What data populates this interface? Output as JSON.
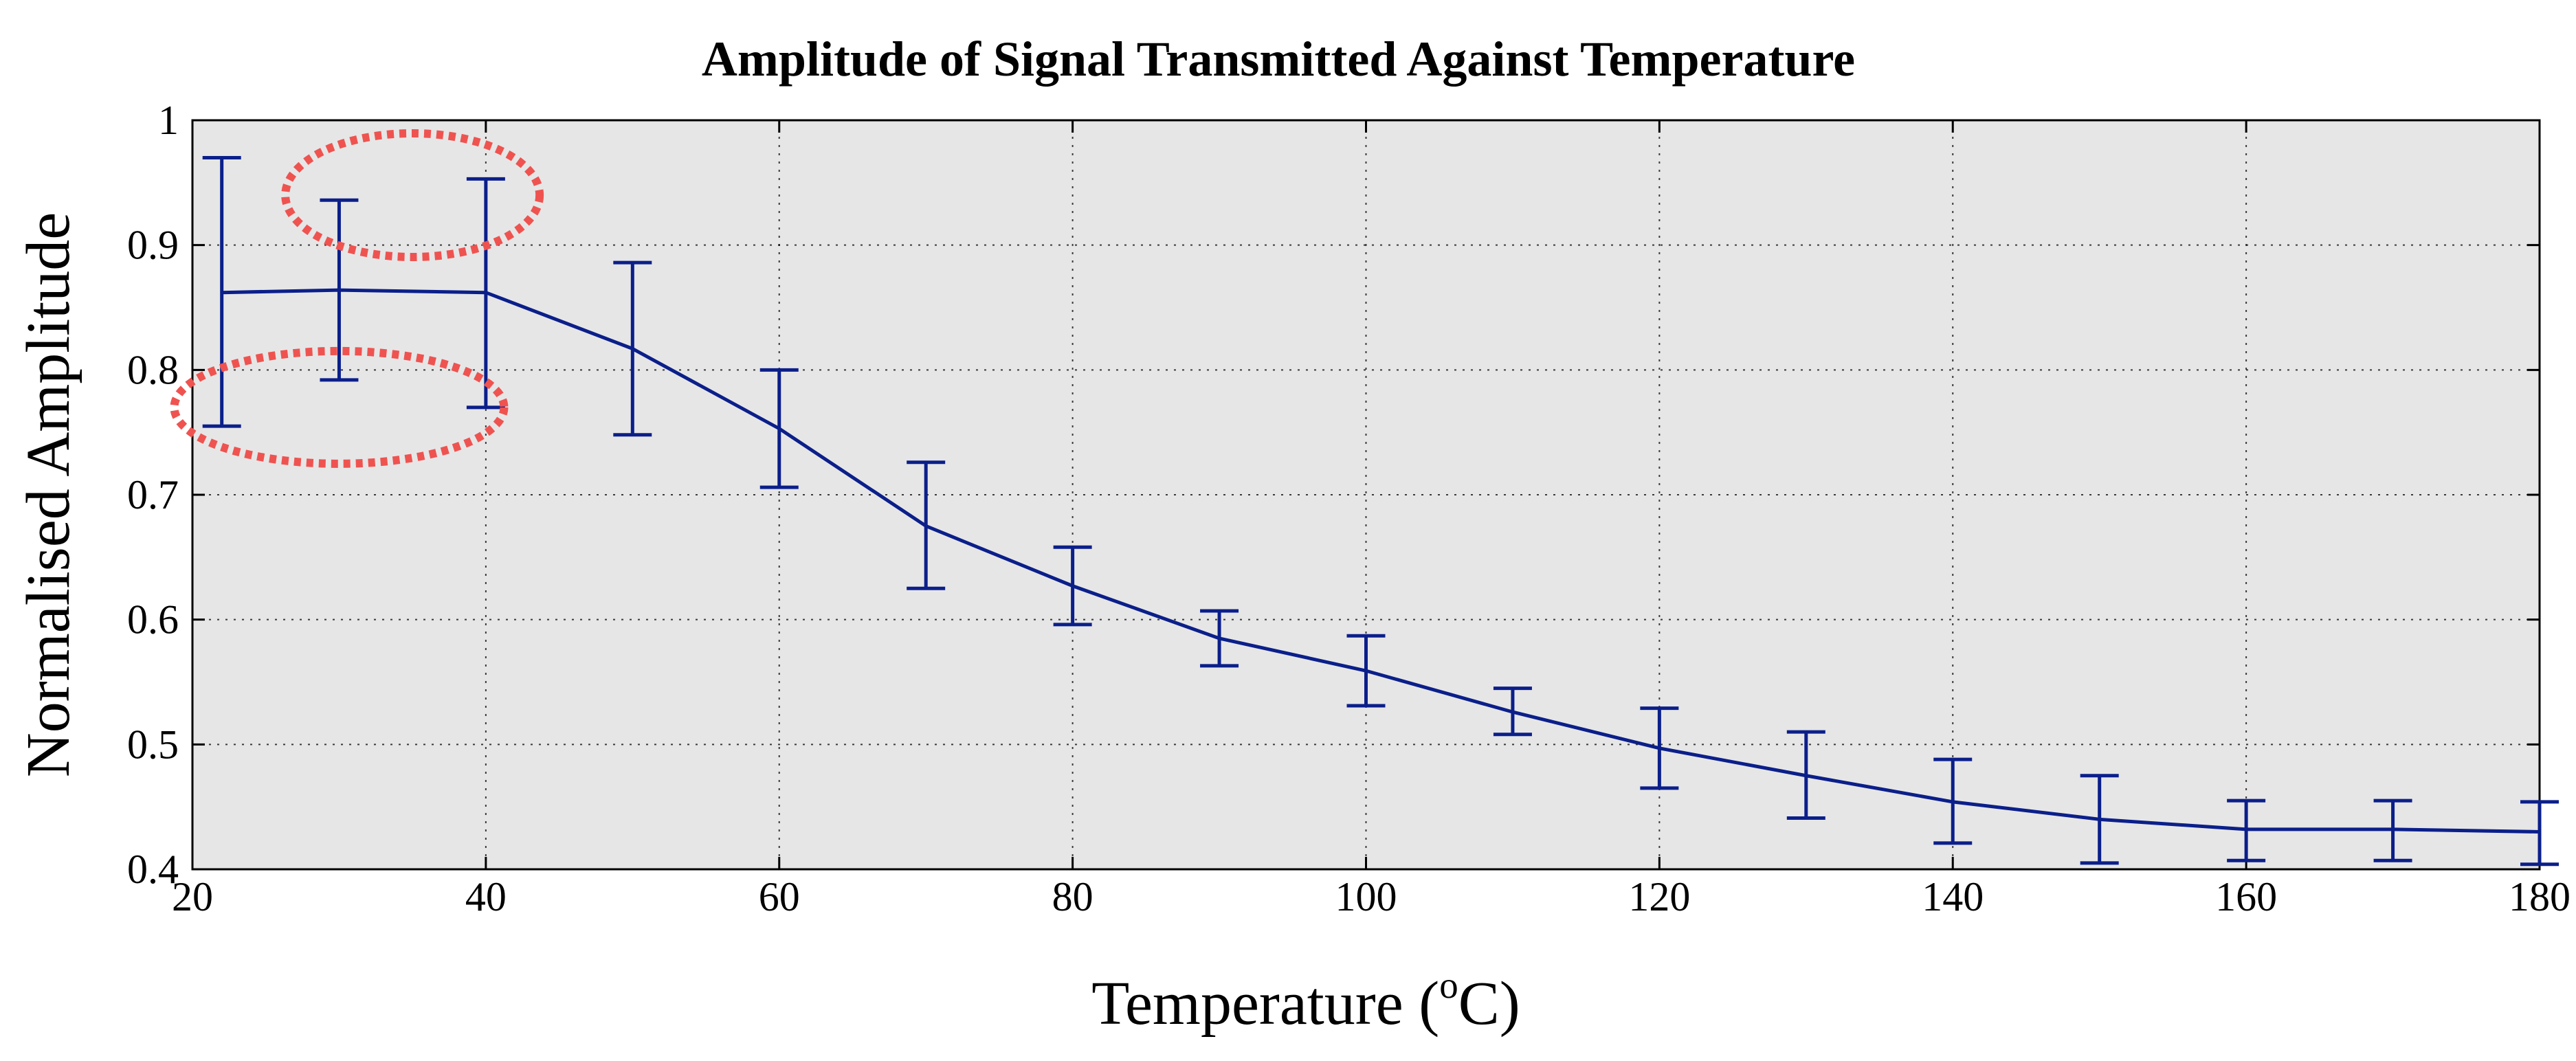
{
  "chart_data": {
    "type": "line",
    "title": "Amplitude of Signal Transmitted Against Temperature",
    "xlabel": "Temperature (",
    "xlabel_sup": "o",
    "xlabel_end": "C)",
    "ylabel": "Normalised Amplitude",
    "xlim": [
      20,
      180
    ],
    "ylim": [
      0.4,
      1
    ],
    "grid": true,
    "x_ticks": [
      20,
      40,
      60,
      80,
      100,
      120,
      140,
      160,
      180
    ],
    "x_tick_labels": [
      "20",
      "40",
      "60",
      "80",
      "100",
      "120",
      "140",
      "160",
      "180"
    ],
    "y_ticks": [
      0.4,
      0.5,
      0.6,
      0.7,
      0.8,
      0.9,
      1
    ],
    "y_tick_labels": [
      "0.4",
      "0.5",
      "0.6",
      "0.7",
      "0.8",
      "0.9",
      "1"
    ],
    "series": [
      {
        "name": "Normalised Amplitude",
        "color": "#0b1f8a",
        "x": [
          22,
          30,
          40,
          50,
          60,
          70,
          80,
          90,
          100,
          110,
          120,
          130,
          140,
          150,
          160,
          170,
          180
        ],
        "y": [
          0.862,
          0.864,
          0.862,
          0.817,
          0.753,
          0.675,
          0.627,
          0.585,
          0.559,
          0.526,
          0.497,
          0.475,
          0.454,
          0.44,
          0.432,
          0.432,
          0.43
        ],
        "err_low": [
          0.755,
          0.792,
          0.77,
          0.748,
          0.706,
          0.625,
          0.596,
          0.563,
          0.531,
          0.508,
          0.465,
          0.441,
          0.421,
          0.405,
          0.407,
          0.407,
          0.404
        ],
        "err_high": [
          0.97,
          0.936,
          0.953,
          0.886,
          0.8,
          0.726,
          0.658,
          0.607,
          0.587,
          0.545,
          0.529,
          0.51,
          0.488,
          0.475,
          0.455,
          0.455,
          0.454
        ]
      }
    ],
    "annotations": [
      {
        "shape": "dotted-ellipse",
        "color": "#ef5350",
        "cx": 35,
        "cy": 0.94
      },
      {
        "shape": "dotted-ellipse",
        "color": "#ef5350",
        "cx": 30,
        "cy": 0.77
      }
    ]
  }
}
